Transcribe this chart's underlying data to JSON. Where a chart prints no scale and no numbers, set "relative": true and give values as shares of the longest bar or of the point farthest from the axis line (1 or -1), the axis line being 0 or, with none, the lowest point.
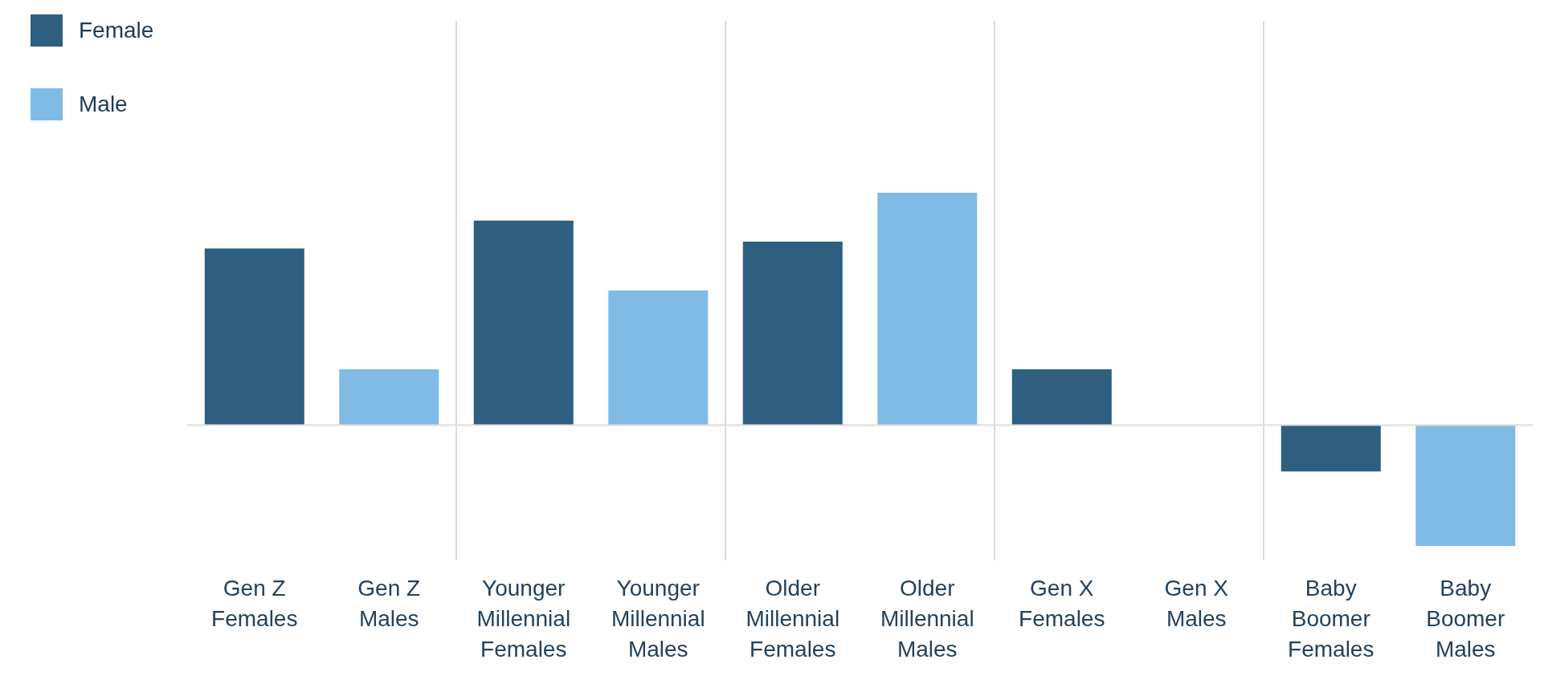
{
  "chart_data": {
    "type": "bar",
    "relative": true,
    "stacked": true,
    "grid": "x",
    "legend": "top left",
    "categories": [
      "Gen Z Females",
      "Gen Z Males",
      "Younger Millennial Females",
      "Younger Millennial Males",
      "Older Millennial Females",
      "Older Millennial Males",
      "Gen X Females",
      "Gen X Males",
      "Baby Boomer Females",
      "Baby Boomer Males"
    ],
    "series": [
      {
        "name": "Female",
        "color": "#2e5f80",
        "values": [
          0.76,
          null,
          0.88,
          null,
          0.79,
          null,
          0.24,
          null,
          -0.2,
          null
        ]
      },
      {
        "name": "Male",
        "color": "#80bbe6",
        "values": [
          null,
          0.24,
          null,
          0.58,
          null,
          1,
          null,
          0,
          null,
          -0.52
        ]
      }
    ]
  }
}
